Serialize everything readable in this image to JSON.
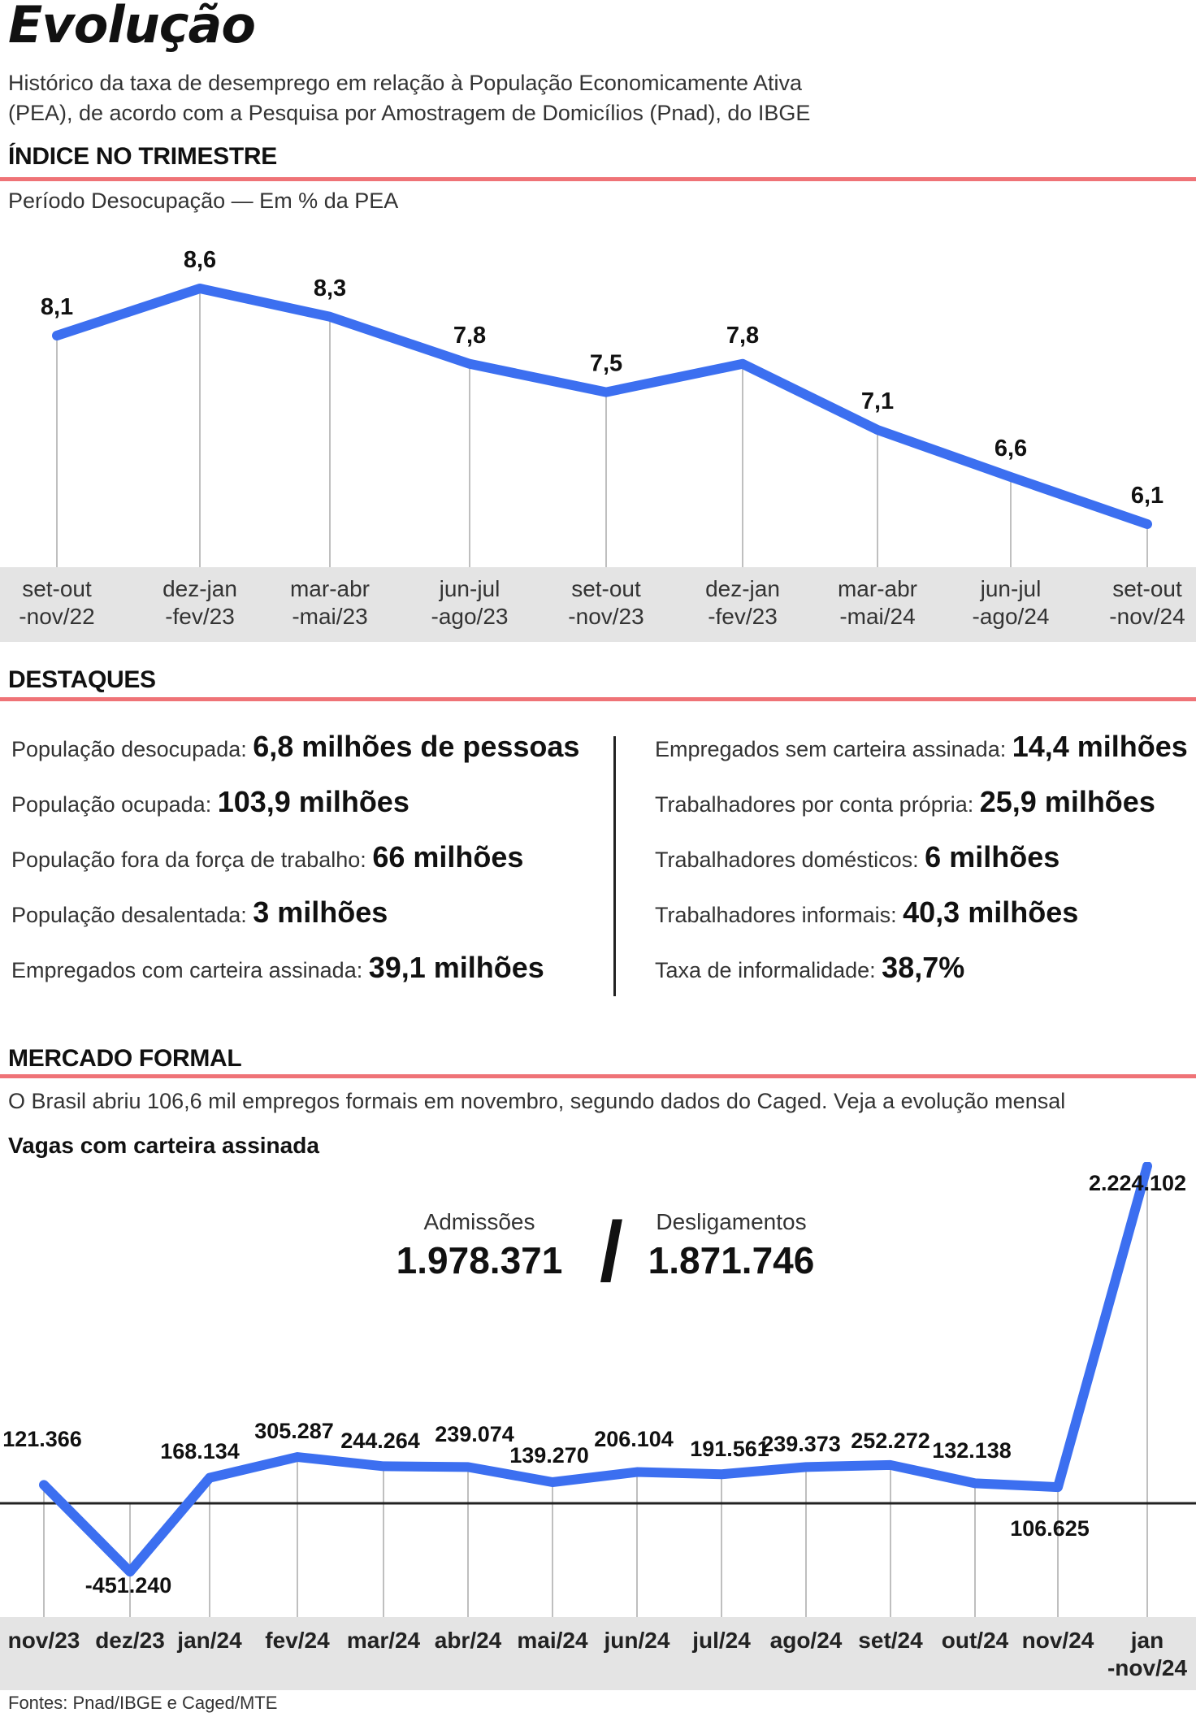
{
  "header": {
    "title": "Evolução",
    "subtitle": "Histórico da taxa de desemprego em relação à População Economicamente Ativa (PEA), de acordo com a Pesquisa por Amostragem de Domicílios (Pnad), do IBGE"
  },
  "section1": {
    "title": "ÍNDICE NO TRIMESTRE",
    "note": "Período Desocupação — Em % da PEA"
  },
  "section2": {
    "title": "DESTAQUES"
  },
  "section3": {
    "title": "MERCADO FORMAL",
    "note": "O Brasil abriu  106,6 mil empregos formais em novembro, segundo dados do Caged. Veja a evolução mensal",
    "subnote": "Vagas com carteira assinada"
  },
  "highlights": {
    "left": [
      {
        "label": "População desocupada: ",
        "value": "6,8 milhões de pessoas"
      },
      {
        "label": "População ocupada: ",
        "value": "103,9 milhões"
      },
      {
        "label": "População fora da força de trabalho: ",
        "value": "66 milhões"
      },
      {
        "label": "População desalentada: ",
        "value": "3 milhões"
      },
      {
        "label": "Empregados com carteira assinada: ",
        "value": "39,1 milhões"
      }
    ],
    "right": [
      {
        "label": "Empregados sem carteira assinada: ",
        "value": "14,4 milhões"
      },
      {
        "label": "Trabalhadores por conta própria: ",
        "value": "25,9 milhões"
      },
      {
        "label": "Trabalhadores domésticos: ",
        "value": "6 milhões"
      },
      {
        "label": "Trabalhadores informais: ",
        "value": "40,3 milhões"
      },
      {
        "label": "Taxa de informalidade: ",
        "value": "38,7%"
      }
    ]
  },
  "totals": {
    "admissions_label": "Admissões",
    "admissions_value": "1.978.371",
    "dismissals_label": "Desligamentos",
    "dismissals_value": "1.871.746",
    "separator": "/"
  },
  "footer": "Fontes: Pnad/IBGE e Caged/MTE",
  "colors": {
    "line": "#3c6ff0",
    "rule": "#ef7377",
    "axis_band": "#e4e4e4"
  },
  "chart_data": [
    {
      "type": "line",
      "x": [
        "set-out\n-nov/22",
        "dez-jan\n-fev/23",
        "mar-abr\n-mai/23",
        "jun-jul\n-ago/23",
        "set-out\n-nov/23",
        "dez-jan\n-fev/23",
        "mar-abr\n-mai/24",
        "jun-jul\n-ago/24",
        "set-out\n-nov/24"
      ],
      "values": [
        8.1,
        8.6,
        8.3,
        7.8,
        7.5,
        7.8,
        7.1,
        6.6,
        6.1
      ],
      "labels": [
        "8,1",
        "8,6",
        "8,3",
        "7,8",
        "7,5",
        "7,8",
        "7,1",
        "6,6",
        "6,1"
      ],
      "title": "",
      "xlabel": "",
      "ylabel": "",
      "ylim": [
        5.5,
        9.0
      ],
      "grid": false
    },
    {
      "type": "line",
      "x": [
        "nov/23",
        "dez/23",
        "jan/24",
        "fev/24",
        "mar/24",
        "abr/24",
        "mai/24",
        "jun/24",
        "jul/24",
        "ago/24",
        "set/24",
        "out/24",
        "nov/24",
        "jan\n-nov/24"
      ],
      "values": [
        121366,
        -451240,
        168134,
        305287,
        244264,
        239074,
        139270,
        206104,
        191561,
        239373,
        252272,
        132138,
        106625,
        2224102
      ],
      "labels": [
        "121.366",
        "-451.240",
        "168.134",
        "305.287",
        "244.264",
        "239.074",
        "139.270",
        "206.104",
        "191.561",
        "239.373",
        "252.272",
        "132.138",
        "106.625",
        "2.224.102"
      ],
      "title": "",
      "xlabel": "",
      "ylabel": "",
      "ylim": [
        -600000,
        2300000
      ],
      "grid": false
    }
  ]
}
